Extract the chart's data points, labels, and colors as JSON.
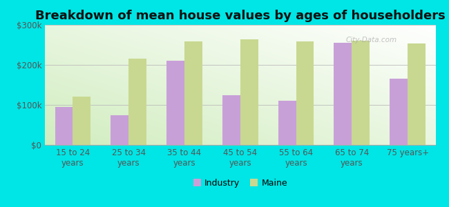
{
  "title": "Breakdown of mean house values by ages of householders",
  "categories": [
    "15 to 24\nyears",
    "25 to 34\nyears",
    "35 to 44\nyears",
    "45 to 54\nyears",
    "55 to 64\nyears",
    "65 to 74\nyears",
    "75 years+"
  ],
  "industry_values": [
    95000,
    75000,
    210000,
    125000,
    110000,
    255000,
    165000
  ],
  "maine_values": [
    120000,
    215000,
    258000,
    263000,
    258000,
    260000,
    253000
  ],
  "industry_color": "#c8a0d8",
  "maine_color": "#c8d890",
  "background_color": "#00e5e5",
  "ylim": [
    0,
    300000
  ],
  "yticks": [
    0,
    100000,
    200000,
    300000
  ],
  "ytick_labels": [
    "$0",
    "$100k",
    "$200k",
    "$300k"
  ],
  "legend_labels": [
    "Industry",
    "Maine"
  ],
  "watermark": "City-Data.com",
  "title_fontsize": 13,
  "tick_fontsize": 8.5,
  "legend_fontsize": 9,
  "bar_width": 0.32
}
